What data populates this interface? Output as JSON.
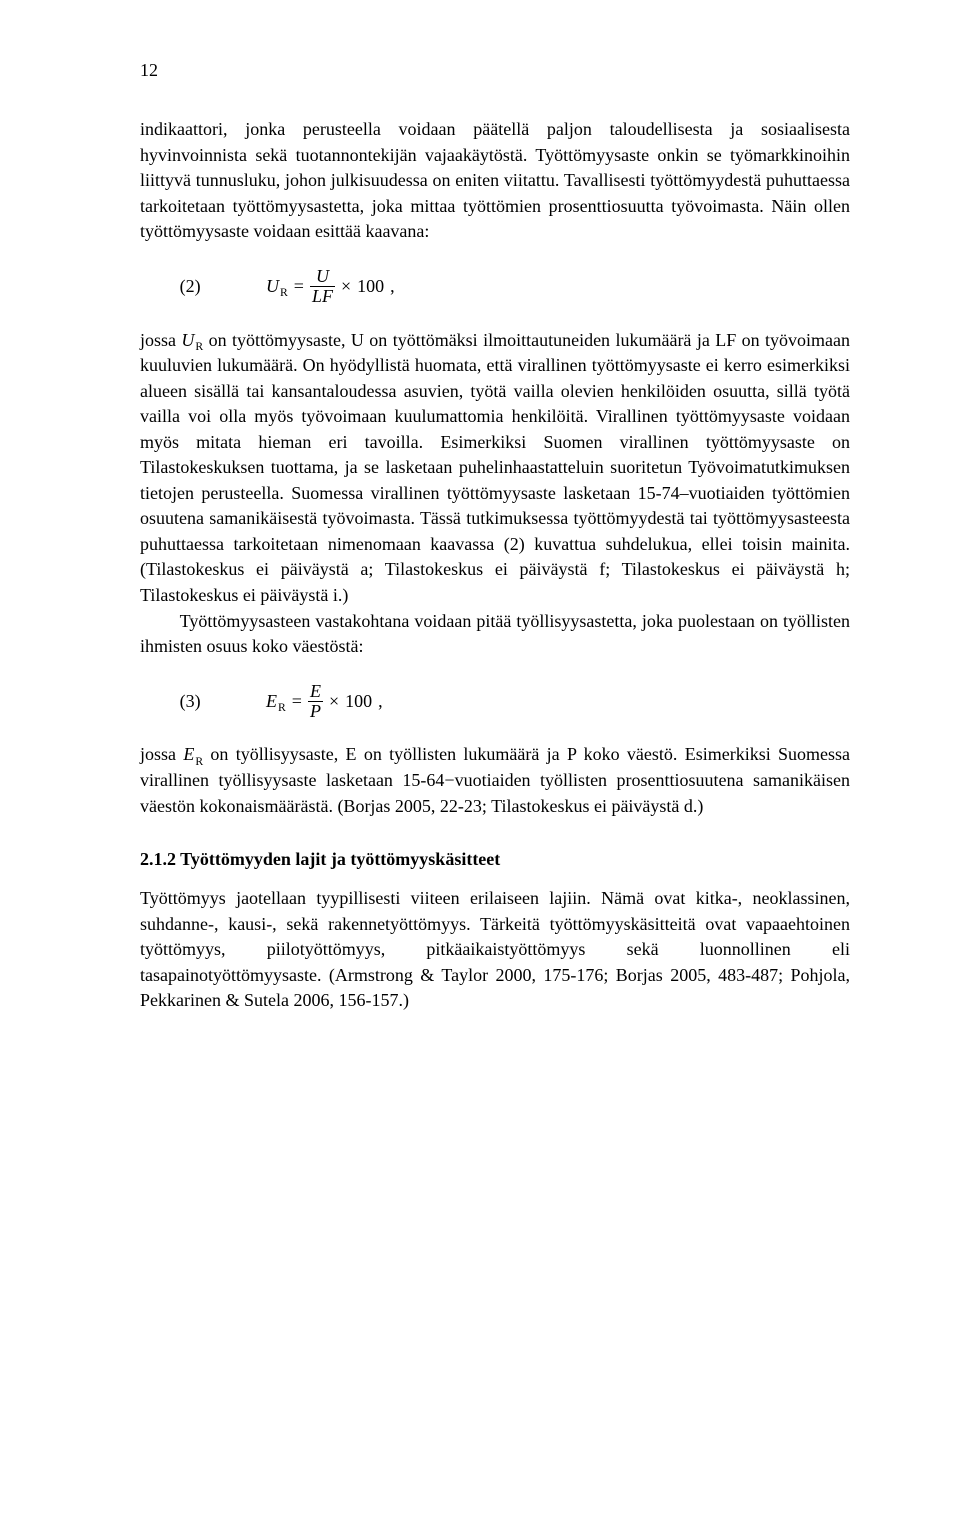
{
  "page_number": "12",
  "paragraphs": {
    "p1": "indikaattori, jonka perusteella voidaan päätellä paljon taloudellisesta ja sosiaalisesta hyvinvoinnista sekä tuotannontekijän vajaakäytöstä. Työttömyysaste onkin se työmarkkinoihin liittyvä tunnusluku, johon julkisuudessa on eniten viitattu. Tavallisesti työttömyydestä puhuttaessa tarkoitetaan työttömyysastetta, joka mittaa työttömien prosenttiosuutta työvoimasta. Näin ollen työttömyysaste voidaan esittää kaavana:",
    "p2_prefix": "jossa ",
    "p2": " on työttömyysaste, U on työttömäksi ilmoittautuneiden lukumäärä ja LF on työvoimaan kuuluvien lukumäärä. On hyödyllistä huomata, että virallinen työttömyysaste ei kerro esimerkiksi alueen sisällä tai kansantaloudessa asuvien, työtä vailla olevien henkilöiden osuutta, sillä työtä vailla voi olla myös työvoimaan kuulumattomia henkilöitä. Virallinen työttömyysaste voidaan myös mitata hieman eri tavoilla. Esimerkiksi Suomen virallinen työttömyysaste on Tilastokeskuksen tuottama, ja se lasketaan puhelinhaastatteluin suoritetun Työvoimatutkimuksen tietojen perusteella. Suomessa virallinen työttömyysaste lasketaan 15-74–vuotiaiden työttömien osuutena samanikäisestä työvoimasta. Tässä tutkimuksessa työttömyydestä tai työttömyysasteesta puhuttaessa tarkoitetaan nimenomaan kaavassa (2) kuvattua suhdelukua, ellei toisin mainita. (Tilastokeskus ei päiväystä a; Tilastokeskus ei päiväystä f; Tilastokeskus ei päiväystä h; Tilastokeskus ei päiväystä i.)",
    "p3": "Työttömyysasteen vastakohtana voidaan pitää työllisyysastetta, joka puolestaan on työllisten ihmisten osuus koko väestöstä:",
    "p4_prefix": "jossa ",
    "p4": " on työllisyysaste, E on työllisten lukumäärä ja P koko väestö. Esimerkiksi Suomessa virallinen työllisyysaste lasketaan 15-64−vuotiaiden työllisten prosenttiosuutena samanikäisen väestön kokonaismäärästä. (Borjas 2005, 22-23; Tilastokeskus ei päiväystä d.)",
    "p5": "Työttömyys jaotellaan tyypillisesti viiteen erilaiseen lajiin. Nämä ovat kitka-, neoklassinen, suhdanne-, kausi-, sekä rakennetyöttömyys. Tärkeitä työttömyyskäsitteitä ovat vapaaehtoinen työttömyys, piilotyöttömyys, pitkäaikaistyöttömyys sekä luonnollinen eli tasapainotyöttömyysaste. (Armstrong & Taylor 2000, 175-176; Borjas 2005, 483-487; Pohjola, Pekkarinen & Sutela 2006, 156-157.)"
  },
  "equations": {
    "eq2": {
      "number": "(2)",
      "var": "U",
      "sub": "R",
      "eq_sign": "=",
      "frac_num": "U",
      "frac_den": "LF",
      "times": "×",
      "hundred": "100",
      "tail": ","
    },
    "eq3": {
      "number": "(3)",
      "var": "E",
      "sub": "R",
      "eq_sign": "=",
      "frac_num": "E",
      "frac_den": "P",
      "times": "×",
      "hundred": "100",
      "tail": ","
    }
  },
  "inline_vars": {
    "UR_var": "U",
    "UR_sub": "R",
    "ER_var": "E",
    "ER_sub": "R"
  },
  "section_heading": "2.1.2 Työttömyyden lajit ja työttömyyskäsitteet",
  "typography": {
    "body_font_size_pt": 12,
    "heading_font_weight": "bold",
    "text_color": "#000000",
    "background_color": "#ffffff",
    "font_family": "Palatino / Book Antiqua (serif)"
  }
}
